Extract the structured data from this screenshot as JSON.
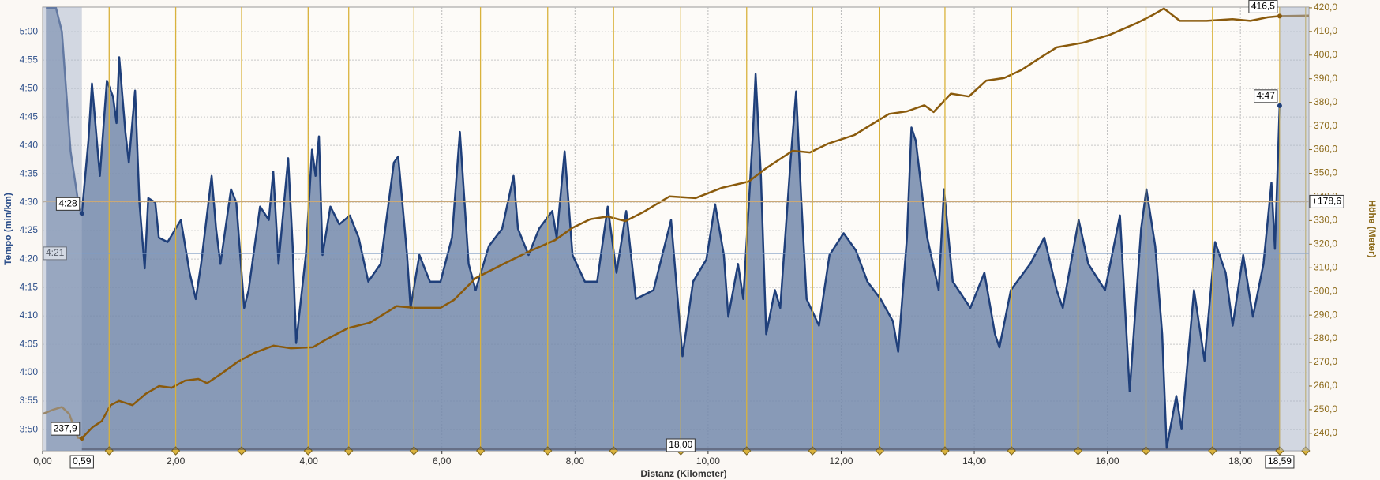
{
  "chart_data": {
    "type": "line",
    "x_label": "Distanz (Kilometer)",
    "y_label": "Tempo (min/km)",
    "y2_label": "Höhe (Meter)",
    "xlim": [
      0,
      19.03
    ],
    "ylim": [
      3.771,
      5.072
    ],
    "y2lim": [
      232.6,
      420.3
    ],
    "xticks": [
      {
        "value": 0,
        "label": "0,00"
      },
      {
        "value": 2,
        "label": "2,00"
      },
      {
        "value": 4,
        "label": "4,00"
      },
      {
        "value": 6,
        "label": "6,00"
      },
      {
        "value": 8,
        "label": "8,00"
      },
      {
        "value": 10,
        "label": "10,00"
      },
      {
        "value": 12,
        "label": "12,00"
      },
      {
        "value": 14,
        "label": "14,00"
      },
      {
        "value": 16,
        "label": "16,00"
      },
      {
        "value": 18,
        "label": "18,00"
      }
    ],
    "yticks": [
      {
        "value": 3.8333,
        "label": "3:50"
      },
      {
        "value": 3.9167,
        "label": "3:55"
      },
      {
        "value": 4,
        "label": "4:00"
      },
      {
        "value": 4.0833,
        "label": "4:05"
      },
      {
        "value": 4.1667,
        "label": "4:10"
      },
      {
        "value": 4.25,
        "label": "4:15"
      },
      {
        "value": 4.3333,
        "label": "4:20"
      },
      {
        "value": 4.4167,
        "label": "4:25"
      },
      {
        "value": 4.5,
        "label": "4:30"
      },
      {
        "value": 4.5833,
        "label": "4:35"
      },
      {
        "value": 4.6667,
        "label": "4:40"
      },
      {
        "value": 4.75,
        "label": "4:45"
      },
      {
        "value": 4.8333,
        "label": "4:50"
      },
      {
        "value": 4.9167,
        "label": "4:55"
      },
      {
        "value": 5,
        "label": "5:00"
      }
    ],
    "y2ticks": [
      {
        "value": 240,
        "label": "240,0"
      },
      {
        "value": 250,
        "label": "250,0"
      },
      {
        "value": 260,
        "label": "260,0"
      },
      {
        "value": 270,
        "label": "270,0"
      },
      {
        "value": 280,
        "label": "280,0"
      },
      {
        "value": 290,
        "label": "290,0"
      },
      {
        "value": 300,
        "label": "300,0"
      },
      {
        "value": 310,
        "label": "310,0"
      },
      {
        "value": 320,
        "label": "320,0"
      },
      {
        "value": 330,
        "label": "330,0"
      },
      {
        "value": 340,
        "label": "340,0"
      },
      {
        "value": 350,
        "label": "350,0"
      },
      {
        "value": 360,
        "label": "360,0"
      },
      {
        "value": 370,
        "label": "370,0"
      },
      {
        "value": 380,
        "label": "380,0"
      },
      {
        "value": 390,
        "label": "390,0"
      },
      {
        "value": 400,
        "label": "400,0"
      },
      {
        "value": 410,
        "label": "410,0"
      },
      {
        "value": 420,
        "label": "420,0"
      }
    ],
    "grid": true,
    "series": [
      {
        "color": "#1f3f7a",
        "fill": "#7388ab",
        "area": true,
        "x": [
          0.05,
          0.2,
          0.29,
          0.42,
          0.55,
          0.59,
          0.688,
          0.741,
          0.86,
          0.966,
          1.058,
          1.111,
          1.151,
          1.243,
          1.296,
          1.389,
          1.455,
          1.534,
          1.587,
          1.693,
          1.746,
          1.878,
          2.077,
          2.209,
          2.302,
          2.381,
          2.54,
          2.606,
          2.672,
          2.831,
          2.91,
          3.029,
          3.095,
          3.267,
          3.399,
          3.466,
          3.545,
          3.69,
          3.757,
          3.81,
          3.955,
          4.048,
          4.101,
          4.153,
          4.206,
          4.325,
          4.458,
          4.616,
          4.749,
          4.894,
          5.079,
          5.278,
          5.344,
          5.476,
          5.529,
          5.661,
          5.82,
          5.979,
          6.151,
          6.27,
          6.402,
          6.508,
          6.706,
          6.905,
          7.077,
          7.143,
          7.302,
          7.46,
          7.659,
          7.725,
          7.844,
          7.963,
          8.148,
          8.333,
          8.492,
          8.624,
          8.77,
          8.915,
          9.18,
          9.444,
          9.577,
          9.616,
          9.775,
          9.974,
          10.106,
          10.238,
          10.304,
          10.45,
          10.529,
          10.675,
          10.714,
          10.794,
          10.873,
          11.005,
          11.085,
          11.243,
          11.323,
          11.402,
          11.481,
          11.667,
          11.825,
          12.037,
          12.222,
          12.394,
          12.593,
          12.778,
          12.857,
          12.989,
          13.056,
          13.122,
          13.294,
          13.466,
          13.545,
          13.677,
          13.942,
          14.153,
          14.312,
          14.378,
          14.55,
          14.841,
          15.053,
          15.238,
          15.331,
          15.569,
          15.714,
          15.966,
          16.19,
          16.336,
          16.508,
          16.587,
          16.72,
          16.825,
          16.892,
          17.037,
          17.116,
          17.302,
          17.46,
          17.619,
          17.778,
          17.884,
          18.042,
          18.188,
          18.347,
          18.466,
          18.519,
          18.59
        ],
        "values": [
          5.07,
          5.07,
          5.0,
          4.65,
          4.48,
          4.467,
          4.68,
          4.848,
          4.577,
          4.856,
          4.809,
          4.732,
          4.925,
          4.706,
          4.616,
          4.827,
          4.499,
          4.306,
          4.512,
          4.499,
          4.396,
          4.383,
          4.448,
          4.293,
          4.216,
          4.319,
          4.577,
          4.422,
          4.319,
          4.538,
          4.499,
          4.19,
          4.242,
          4.487,
          4.448,
          4.59,
          4.319,
          4.629,
          4.371,
          4.087,
          4.345,
          4.654,
          4.577,
          4.693,
          4.345,
          4.487,
          4.435,
          4.461,
          4.396,
          4.267,
          4.319,
          4.616,
          4.634,
          4.345,
          4.19,
          4.345,
          4.267,
          4.267,
          4.396,
          4.706,
          4.319,
          4.242,
          4.371,
          4.422,
          4.577,
          4.422,
          4.345,
          4.422,
          4.474,
          4.396,
          4.649,
          4.345,
          4.267,
          4.267,
          4.487,
          4.293,
          4.474,
          4.216,
          4.242,
          4.448,
          4.138,
          4.048,
          4.267,
          4.332,
          4.494,
          4.345,
          4.164,
          4.319,
          4.216,
          4.706,
          4.876,
          4.577,
          4.113,
          4.242,
          4.19,
          4.629,
          4.825,
          4.499,
          4.216,
          4.138,
          4.345,
          4.409,
          4.358,
          4.267,
          4.216,
          4.151,
          4.061,
          4.396,
          4.719,
          4.68,
          4.396,
          4.242,
          4.538,
          4.267,
          4.19,
          4.293,
          4.113,
          4.074,
          4.242,
          4.319,
          4.396,
          4.242,
          4.19,
          4.448,
          4.319,
          4.242,
          4.461,
          3.945,
          4.422,
          4.538,
          4.371,
          4.113,
          3.78,
          3.932,
          3.834,
          4.242,
          4.035,
          4.383,
          4.293,
          4.138,
          4.345,
          4.164,
          4.319,
          4.557,
          4.363,
          4.783
        ],
        "point_labels": [
          {
            "index": 5,
            "label": "4:28"
          },
          {
            "index": 145,
            "label": "4:47"
          }
        ]
      },
      {
        "color": "#8a5a0c",
        "axis": "y2",
        "x": [
          0,
          0.16,
          0.29,
          0.4,
          0.53,
          0.59,
          0.75,
          0.89,
          1.02,
          1.15,
          1.35,
          1.55,
          1.75,
          1.94,
          2.14,
          2.34,
          2.47,
          2.67,
          2.94,
          3.2,
          3.47,
          3.73,
          4.06,
          4.26,
          4.59,
          4.92,
          5.32,
          5.58,
          5.98,
          6.18,
          6.51,
          6.9,
          7.3,
          7.7,
          7.96,
          8.23,
          8.49,
          8.76,
          9.02,
          9.42,
          9.81,
          10.21,
          10.61,
          10.87,
          11.27,
          11.53,
          11.8,
          12.2,
          12.46,
          12.72,
          12.99,
          13.25,
          13.39,
          13.65,
          13.92,
          14.18,
          14.45,
          14.71,
          14.97,
          15.24,
          15.63,
          16.03,
          16.43,
          16.69,
          16.85,
          17.09,
          17.49,
          17.88,
          18.15,
          18.41,
          18.59,
          19.03
        ],
        "values": [
          248.2,
          250,
          251.1,
          248.2,
          238.1,
          237.9,
          242.6,
          245.2,
          251.9,
          253.7,
          251.9,
          256.7,
          260,
          259.3,
          262.3,
          263,
          261.2,
          264.9,
          270.4,
          274.2,
          277.1,
          276,
          276.4,
          279.7,
          284.5,
          286.8,
          293.8,
          293.1,
          293.1,
          296.4,
          305.7,
          311.3,
          316.8,
          321.7,
          326.9,
          330.6,
          331.7,
          329.8,
          333.5,
          340.2,
          339.5,
          343.9,
          346.5,
          352.1,
          359.5,
          358.8,
          362.5,
          366.2,
          370.7,
          375.1,
          376.2,
          378.8,
          375.9,
          383.7,
          382.5,
          389.2,
          390.3,
          393.7,
          398.5,
          403.3,
          405.2,
          408.5,
          413.4,
          417.1,
          419.7,
          414.5,
          414.5,
          415.2,
          414.5,
          416,
          416.5,
          416.7
        ],
        "point_labels": [
          {
            "index": 5,
            "label": "237,9"
          },
          {
            "index": 70,
            "label": "416,5"
          }
        ]
      }
    ],
    "selection": {
      "start": {
        "value": 0.59,
        "label": "0,59"
      },
      "end": {
        "value": 18.59,
        "label": "18,59"
      },
      "length": {
        "value": 18,
        "label": "18,00"
      }
    },
    "lap_markers": [
      1.0,
      2.0,
      2.99,
      3.99,
      4.6,
      5.58,
      6.58,
      7.59,
      8.58,
      9.59,
      10.58,
      11.57,
      12.58,
      13.56,
      14.56,
      15.56,
      16.58,
      17.58,
      18.59,
      18.98
    ],
    "lap_color": "#d9b23c",
    "reference_lines": [
      {
        "axis": "y",
        "value": 4.35,
        "label": "4:21",
        "color": "#7f9cc4"
      },
      {
        "axis": "y2",
        "value": 338,
        "color": "#c9a878"
      }
    ],
    "elevation_gain": {
      "value": 178.6,
      "label": "+178,6"
    }
  }
}
